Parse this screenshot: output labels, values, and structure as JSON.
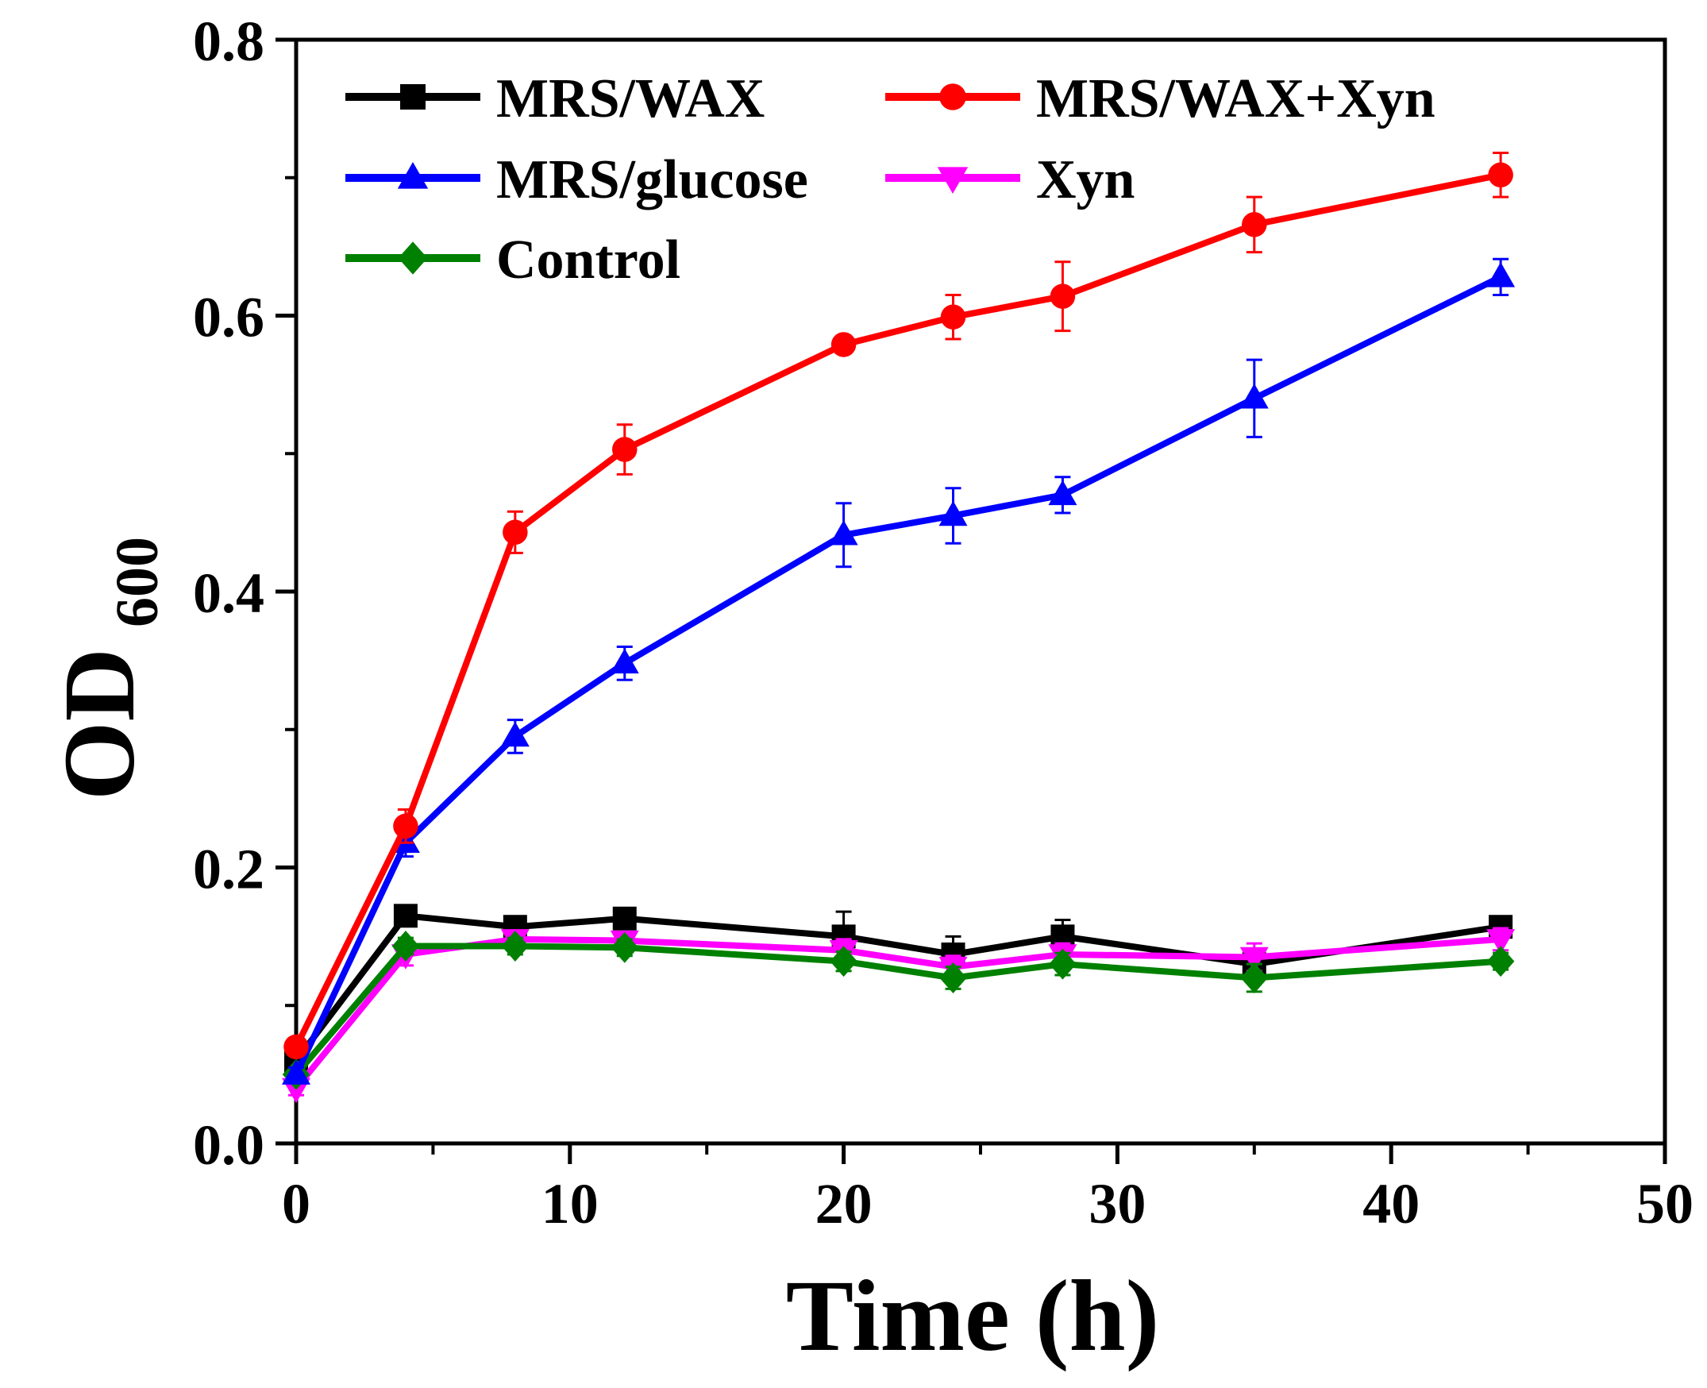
{
  "chart_data": {
    "type": "line",
    "title": "",
    "xlabel": "Time (h)",
    "ylabel_main": "OD",
    "ylabel_sub": "600",
    "xlim": [
      0,
      50
    ],
    "ylim": [
      0.0,
      0.8
    ],
    "xticks": [
      0,
      10,
      20,
      30,
      40,
      50
    ],
    "xtick_labels": [
      "0",
      "10",
      "20",
      "30",
      "40",
      "50"
    ],
    "yticks": [
      0.0,
      0.2,
      0.4,
      0.6,
      0.8
    ],
    "ytick_labels": [
      "0.0",
      "0.2",
      "0.4",
      "0.6",
      "0.8"
    ],
    "grid": false,
    "legend_position": "top-left",
    "x": [
      0,
      4,
      8,
      12,
      20,
      24,
      28,
      35,
      44
    ],
    "series": [
      {
        "name": "MRS/WAX",
        "color": "#000000",
        "marker": "square",
        "values": [
          0.06,
          0.165,
          0.157,
          0.163,
          0.15,
          0.137,
          0.15,
          0.13,
          0.157
        ],
        "errors": [
          0.005,
          0.006,
          0.006,
          0.006,
          0.018,
          0.013,
          0.012,
          0.008,
          0.006
        ]
      },
      {
        "name": "MRS/WAX+Xyn",
        "color": "#ff0000",
        "marker": "circle",
        "values": [
          0.07,
          0.23,
          0.443,
          0.503,
          0.579,
          0.599,
          0.614,
          0.666,
          0.702
        ],
        "errors": [
          0.005,
          0.012,
          0.015,
          0.018,
          0.006,
          0.016,
          0.025,
          0.02,
          0.016
        ]
      },
      {
        "name": "MRS/glucose",
        "color": "#0000ff",
        "marker": "triangle-up",
        "values": [
          0.05,
          0.218,
          0.295,
          0.348,
          0.441,
          0.455,
          0.47,
          0.54,
          0.628
        ],
        "errors": [
          0.005,
          0.01,
          0.012,
          0.012,
          0.023,
          0.02,
          0.013,
          0.028,
          0.013
        ]
      },
      {
        "name": "Xyn",
        "color": "#ff00ff",
        "marker": "triangle-down",
        "values": [
          0.04,
          0.137,
          0.148,
          0.147,
          0.14,
          0.128,
          0.137,
          0.135,
          0.148
        ],
        "errors": [
          0.005,
          0.008,
          0.006,
          0.006,
          0.008,
          0.008,
          0.008,
          0.01,
          0.008
        ]
      },
      {
        "name": "Control",
        "color": "#008000",
        "marker": "diamond",
        "values": [
          0.05,
          0.143,
          0.143,
          0.142,
          0.132,
          0.12,
          0.13,
          0.12,
          0.132
        ],
        "errors": [
          0.004,
          0.006,
          0.006,
          0.006,
          0.007,
          0.008,
          0.008,
          0.01,
          0.006
        ]
      }
    ]
  }
}
